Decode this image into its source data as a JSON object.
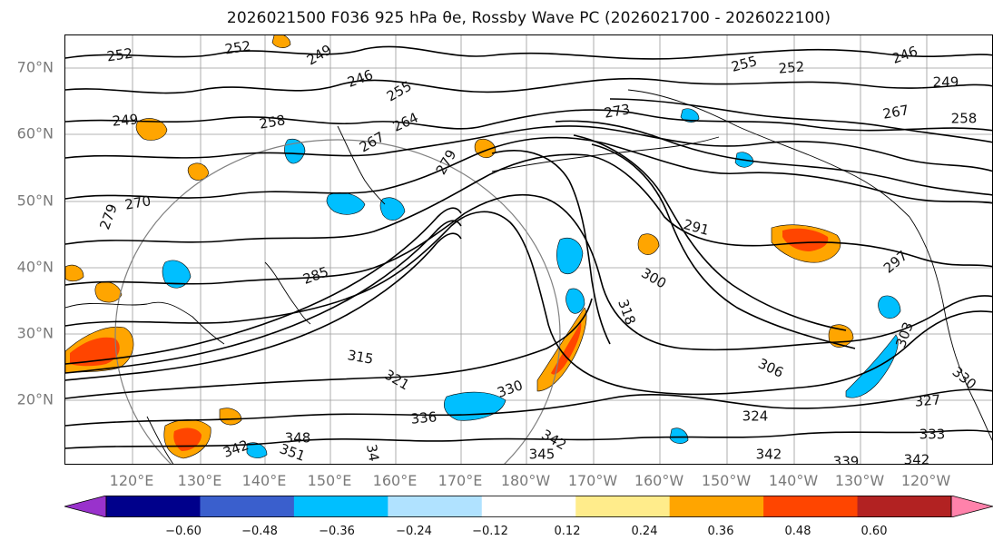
{
  "title": "2026021500 F036 925 hPa θe, Rossby Wave PC (2026021700 - 2026022100)",
  "latitude_labels": [
    "70°N",
    "60°N",
    "50°N",
    "40°N",
    "30°N",
    "20°N"
  ],
  "longitude_labels": [
    "120°E",
    "130°E",
    "140°E",
    "150°E",
    "160°E",
    "170°E",
    "180°W",
    "170°W",
    "160°W",
    "150°W",
    "140°W",
    "130°W",
    "120°W"
  ],
  "colorbar": {
    "colors": [
      "#9932cc",
      "#00008b",
      "#3a5fcd",
      "#00bfff",
      "#b0e2ff",
      "#ffffff",
      "#ffec8b",
      "#ffa500",
      "#ff4500",
      "#b22222",
      "#ff82ab"
    ],
    "tick_labels": [
      "−0.60",
      "−0.48",
      "−0.36",
      "−0.24",
      "−0.12",
      "0.12",
      "0.24",
      "0.36",
      "0.48",
      "0.60"
    ]
  },
  "contour_labels": [
    {
      "text": "252"
    },
    {
      "text": "252"
    },
    {
      "text": "249"
    },
    {
      "text": "246"
    },
    {
      "text": "255"
    },
    {
      "text": "249"
    },
    {
      "text": "258"
    },
    {
      "text": "264"
    },
    {
      "text": "267"
    },
    {
      "text": "273"
    },
    {
      "text": "279"
    },
    {
      "text": "270"
    },
    {
      "text": "279"
    },
    {
      "text": "255"
    },
    {
      "text": "252"
    },
    {
      "text": "246"
    },
    {
      "text": "249"
    },
    {
      "text": "267"
    },
    {
      "text": "258"
    },
    {
      "text": "291"
    },
    {
      "text": "300"
    },
    {
      "text": "297"
    },
    {
      "text": "285"
    },
    {
      "text": "318"
    },
    {
      "text": "315"
    },
    {
      "text": "321"
    },
    {
      "text": "306"
    },
    {
      "text": "303"
    },
    {
      "text": "330"
    },
    {
      "text": "336"
    },
    {
      "text": "327"
    },
    {
      "text": "324"
    },
    {
      "text": "330"
    },
    {
      "text": "348"
    },
    {
      "text": "342"
    },
    {
      "text": "351"
    },
    {
      "text": "342"
    },
    {
      "text": "345"
    },
    {
      "text": "342"
    },
    {
      "text": "339"
    },
    {
      "text": "342"
    },
    {
      "text": "333"
    },
    {
      "text": "34"
    }
  ]
}
